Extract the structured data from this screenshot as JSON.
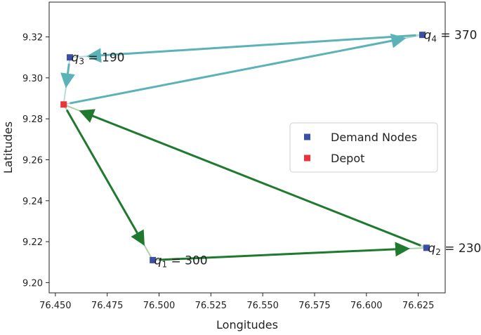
{
  "chart_data": {
    "type": "scatter",
    "title": "",
    "xlabel": "Longitudes",
    "ylabel": "Latitudes",
    "xlim": [
      76.447,
      76.638
    ],
    "ylim": [
      9.195,
      9.337
    ],
    "x_ticks": [
      76.45,
      76.475,
      76.5,
      76.525,
      76.55,
      76.575,
      76.6,
      76.625
    ],
    "x_tick_labels": [
      "76.450",
      "76.475",
      "76.500",
      "76.525",
      "76.550",
      "76.575",
      "76.600",
      "76.625"
    ],
    "y_ticks": [
      9.2,
      9.22,
      9.24,
      9.26,
      9.28,
      9.3,
      9.32
    ],
    "y_tick_labels": [
      "9.20",
      "9.22",
      "9.24",
      "9.26",
      "9.28",
      "9.30",
      "9.32"
    ],
    "grid": false,
    "legend_placement": "center-right",
    "series": [
      {
        "name": "Demand Nodes",
        "color": "#3a4fa5",
        "points": [
          {
            "x": 76.497,
            "y": 9.211,
            "label_sym": "q",
            "label_sub": "1",
            "label_rest": " = 300"
          },
          {
            "x": 76.629,
            "y": 9.217,
            "label_sym": "q",
            "label_sub": "2",
            "label_rest": " = 230"
          },
          {
            "x": 76.457,
            "y": 9.31,
            "label_sym": "q",
            "label_sub": "3",
            "label_rest": " = 190"
          },
          {
            "x": 76.627,
            "y": 9.321,
            "label_sym": "q",
            "label_sub": "4",
            "label_rest": " = 370"
          }
        ]
      },
      {
        "name": "Depot",
        "color": "#e8343a",
        "points": [
          {
            "x": 76.454,
            "y": 9.287
          }
        ]
      }
    ],
    "routes": [
      {
        "color": "#1f7a30",
        "light": "#a9d3ad",
        "path": [
          [
            76.454,
            9.287
          ],
          [
            76.497,
            9.211
          ],
          [
            76.629,
            9.217
          ],
          [
            76.454,
            9.287
          ]
        ]
      },
      {
        "color": "#5bb3b8",
        "light": "#b6dcd8",
        "path": [
          [
            76.454,
            9.287
          ],
          [
            76.627,
            9.321
          ],
          [
            76.457,
            9.31
          ],
          [
            76.454,
            9.287
          ]
        ]
      }
    ]
  }
}
